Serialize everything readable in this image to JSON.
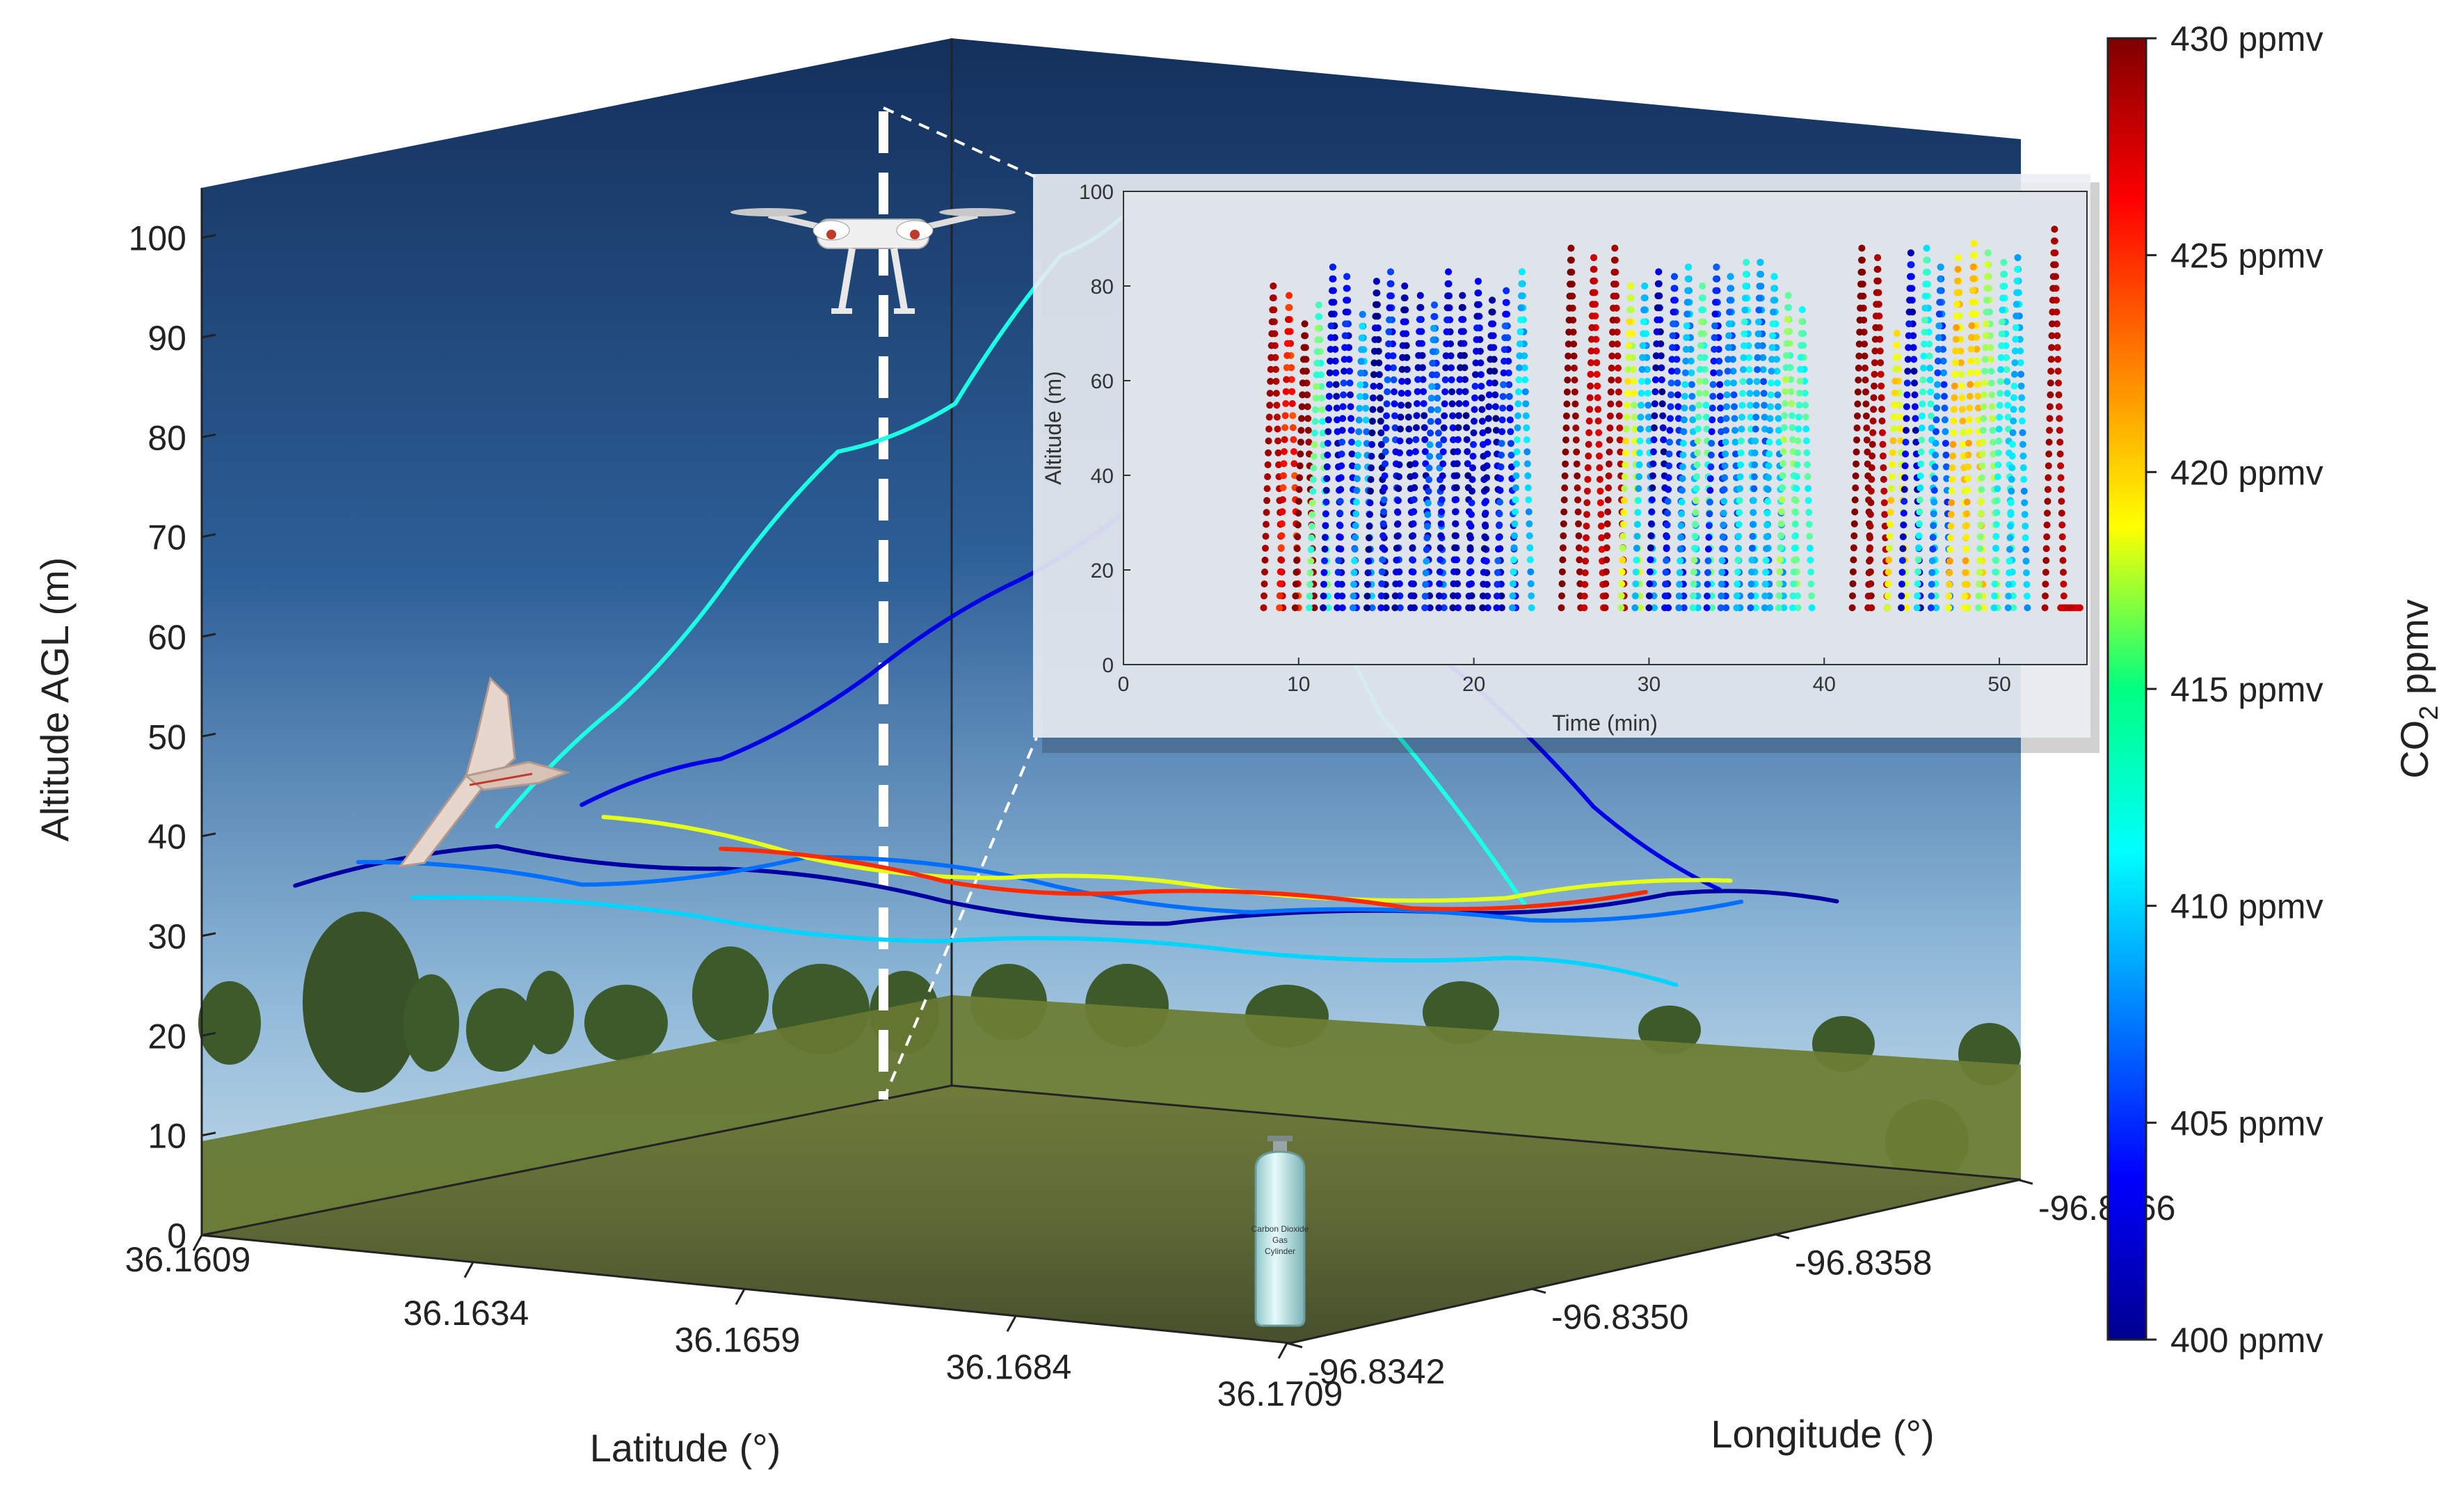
{
  "chart_data": [
    {
      "type": "line",
      "projection": "3d",
      "title": "",
      "zlabel": "Altitude AGL (m)",
      "xlabel": "Latitude (°)",
      "ylabel": "Longitude (°)",
      "z_ticks": [
        "0",
        "10",
        "20",
        "30",
        "40",
        "50",
        "60",
        "70",
        "80",
        "90",
        "100"
      ],
      "zlim": [
        0,
        105
      ],
      "lat_ticks": [
        "36.1609",
        "36.1634",
        "36.1659",
        "36.1684",
        "36.1709"
      ],
      "lon_ticks": [
        "-96.8366",
        "-96.8358",
        "-96.8350",
        "-96.8342"
      ],
      "grid": false,
      "background": "photographic scene of a grass field with trees under a blue sky",
      "series": [
        {
          "color_value": 412,
          "points": [
            [
              36.1625,
              -96.8346,
              40
            ],
            [
              36.1633,
              -96.8347,
              52
            ],
            [
              36.164,
              -96.8348,
              64
            ],
            [
              36.1648,
              -96.8349,
              78
            ],
            [
              36.1656,
              -96.835,
              83
            ],
            [
              36.1663,
              -96.8351,
              98
            ],
            [
              36.167,
              -96.8351,
              104
            ],
            [
              36.1676,
              -96.8352,
              84
            ],
            [
              36.1684,
              -96.8354,
              52
            ],
            [
              36.1692,
              -96.8356,
              32
            ]
          ]
        },
        {
          "color_value": 403,
          "points": [
            [
              36.163,
              -96.8347,
              42
            ],
            [
              36.164,
              -96.8348,
              47
            ],
            [
              36.1651,
              -96.8349,
              56
            ],
            [
              36.1662,
              -96.835,
              66
            ],
            [
              36.1672,
              -96.8351,
              76
            ],
            [
              36.168,
              -96.8352,
              72
            ],
            [
              36.169,
              -96.8354,
              58
            ],
            [
              36.1698,
              -96.8356,
              43
            ],
            [
              36.1704,
              -96.8358,
              34
            ]
          ]
        },
        {
          "color_value": 401,
          "points": [
            [
              36.1612,
              -96.8344,
              34
            ],
            [
              36.1625,
              -96.8346,
              38
            ],
            [
              36.164,
              -96.8348,
              36
            ],
            [
              36.1655,
              -96.835,
              33
            ],
            [
              36.167,
              -96.8352,
              31
            ],
            [
              36.1688,
              -96.8355,
              32
            ],
            [
              36.1702,
              -96.8357,
              34
            ],
            [
              36.1712,
              -96.8359,
              33
            ]
          ]
        },
        {
          "color_value": 407,
          "points": [
            [
              36.1615,
              -96.8345,
              36
            ],
            [
              36.163,
              -96.8347,
              34
            ],
            [
              36.1645,
              -96.8349,
              37
            ],
            [
              36.166,
              -96.8351,
              35
            ],
            [
              36.1675,
              -96.8353,
              32
            ],
            [
              36.1692,
              -96.8356,
              31
            ],
            [
              36.1706,
              -96.8358,
              33
            ]
          ]
        },
        {
          "color_value": 418,
          "points": [
            [
              36.1632,
              -96.8347,
              41
            ],
            [
              36.1645,
              -96.8349,
              37
            ],
            [
              36.1658,
              -96.8351,
              35
            ],
            [
              36.1672,
              -96.8353,
              34
            ],
            [
              36.169,
              -96.8356,
              33
            ],
            [
              36.1705,
              -96.8358,
              35
            ]
          ]
        },
        {
          "color_value": 425,
          "points": [
            [
              36.164,
              -96.8348,
              38
            ],
            [
              36.1655,
              -96.835,
              35
            ],
            [
              36.1668,
              -96.8352,
              34
            ],
            [
              36.1684,
              -96.8355,
              32
            ],
            [
              36.17,
              -96.8357,
              34
            ]
          ]
        },
        {
          "color_value": 410,
          "points": [
            [
              36.162,
              -96.8345,
              33
            ],
            [
              36.1638,
              -96.8348,
              31
            ],
            [
              36.1655,
              -96.835,
              29
            ],
            [
              36.1672,
              -96.8353,
              28
            ],
            [
              36.169,
              -96.8356,
              27
            ],
            [
              36.17,
              -96.8358,
              24
            ]
          ]
        }
      ],
      "colorbar": {
        "label_main": "CO",
        "label_sub": "2",
        "label_suffix": " ppmv",
        "min": 400,
        "max": 430,
        "tick_labels": [
          "400 ppmv",
          "405 ppmv",
          "410 ppmv",
          "415 ppmv",
          "420 ppmv",
          "425 ppmv",
          "430 ppmv"
        ],
        "colormap": "jet"
      }
    },
    {
      "type": "scatter",
      "xlabel": "Time (min)",
      "ylabel": "Altitude (m)",
      "xlim": [
        0,
        55
      ],
      "ylim": [
        0,
        100
      ],
      "x_ticks": [
        "0",
        "10",
        "20",
        "30",
        "40",
        "50"
      ],
      "y_ticks": [
        "0",
        "20",
        "40",
        "60",
        "80",
        "100"
      ],
      "profiles": [
        [
          8.0,
          80,
          429
        ],
        [
          8.9,
          78,
          426
        ],
        [
          9.8,
          72,
          430
        ],
        [
          10.6,
          76,
          414
        ],
        [
          11.4,
          84,
          403
        ],
        [
          12.2,
          82,
          404
        ],
        [
          13.1,
          74,
          409
        ],
        [
          13.9,
          81,
          401
        ],
        [
          14.7,
          83,
          405
        ],
        [
          15.5,
          80,
          402
        ],
        [
          16.4,
          78,
          403
        ],
        [
          17.2,
          76,
          407
        ],
        [
          18.0,
          83,
          403
        ],
        [
          18.8,
          78,
          402
        ],
        [
          19.7,
          81,
          403
        ],
        [
          20.5,
          77,
          402
        ],
        [
          21.3,
          79,
          405
        ],
        [
          22.2,
          83,
          410
        ],
        [
          25.0,
          88,
          430
        ],
        [
          26.3,
          86,
          428
        ],
        [
          27.5,
          88,
          429
        ],
        [
          28.4,
          80,
          418
        ],
        [
          29.2,
          80,
          410
        ],
        [
          30.0,
          83,
          402
        ],
        [
          30.9,
          82,
          405
        ],
        [
          31.7,
          84,
          409
        ],
        [
          32.5,
          80,
          414
        ],
        [
          33.3,
          84,
          405
        ],
        [
          34.1,
          82,
          408
        ],
        [
          35.0,
          85,
          411
        ],
        [
          35.8,
          85,
          408
        ],
        [
          36.6,
          82,
          410
        ],
        [
          37.4,
          78,
          415
        ],
        [
          38.2,
          75,
          413
        ],
        [
          41.6,
          88,
          430
        ],
        [
          42.5,
          86,
          429
        ],
        [
          43.6,
          70,
          419
        ],
        [
          44.4,
          87,
          403
        ],
        [
          45.3,
          88,
          412
        ],
        [
          46.1,
          84,
          407
        ],
        [
          47.1,
          86,
          420
        ],
        [
          48.0,
          89,
          420
        ],
        [
          48.8,
          87,
          416
        ],
        [
          49.7,
          85,
          412
        ],
        [
          50.5,
          86,
          410
        ],
        [
          52.6,
          92,
          429
        ],
        [
          53.5,
          12,
          428
        ]
      ]
    }
  ]
}
